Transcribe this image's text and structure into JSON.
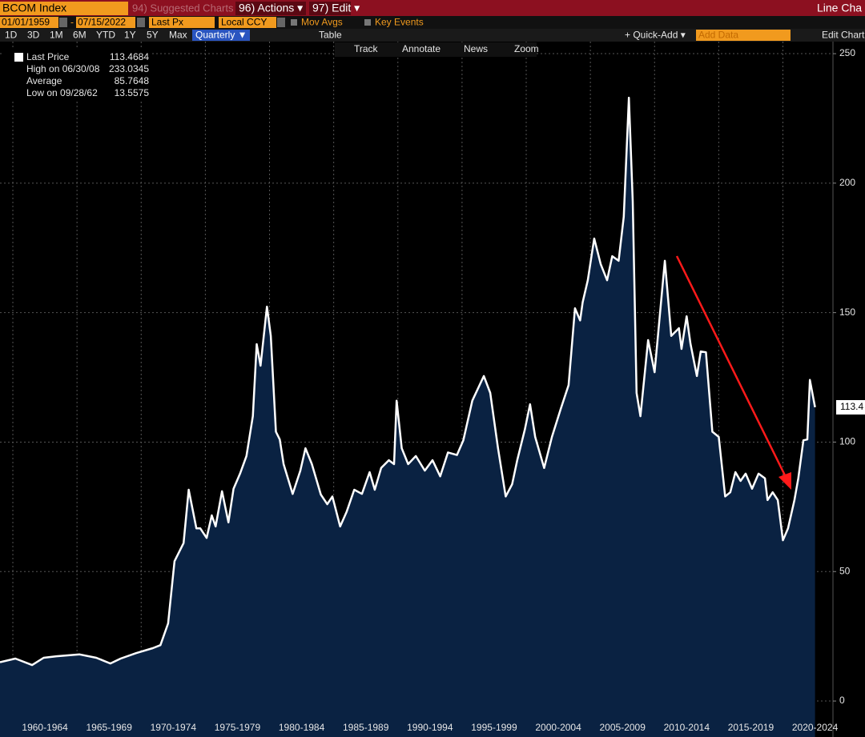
{
  "ui": {
    "topbar": {
      "security": "BCOM Index",
      "suggested": "94) Suggested Charts",
      "actions": "96) Actions ▾",
      "edit": "97) Edit ▾",
      "chart_type": "Line Cha"
    },
    "row2": {
      "start": "01/01/1959",
      "end": "07/15/2022",
      "field": "Last Px",
      "currency": "Local CCY",
      "mov_avgs": "Mov Avgs",
      "key_events": "Key Events"
    },
    "row3": {
      "periods": [
        "1D",
        "3D",
        "1M",
        "6M",
        "YTD",
        "1Y",
        "5Y",
        "Max"
      ],
      "frequency": "Quarterly ▼",
      "table": "Table",
      "quick_add": "+ Quick-Add ▾",
      "add_data": "Add Data",
      "edit_chart": "Edit Chart"
    },
    "tools": [
      "Track",
      "Annotate",
      "News",
      "Zoom"
    ],
    "legend": [
      {
        "label": "Last Price",
        "value": "113.4684"
      },
      {
        "label": "High on 06/30/08",
        "value": "233.0345"
      },
      {
        "label": "Average",
        "value": "85.7648"
      },
      {
        "label": "Low on 09/28/62",
        "value": "13.5575"
      }
    ],
    "last_tag": "113.4"
  },
  "chart_data": {
    "type": "area",
    "color": "#ffffff",
    "fill": "#0a2242",
    "x": [
      1959.0,
      1960.2,
      1961.5,
      1962.4,
      1963.4,
      1965.2,
      1966.5,
      1967.6,
      1968.4,
      1969.6,
      1970.9,
      1971.5,
      1972.1,
      1972.6,
      1973.3,
      1973.7,
      1974.3,
      1974.6,
      1975.1,
      1975.5,
      1975.8,
      1976.3,
      1976.8,
      1977.2,
      1977.7,
      1978.2,
      1978.7,
      1979.0,
      1979.3,
      1979.8,
      1980.1,
      1980.5,
      1980.8,
      1981.1,
      1981.8,
      1982.4,
      1982.8,
      1983.3,
      1984.0,
      1984.5,
      1984.9,
      1985.5,
      1986.0,
      1986.6,
      1987.2,
      1987.8,
      1988.2,
      1988.7,
      1989.3,
      1989.7,
      1989.9,
      1990.3,
      1990.8,
      1991.4,
      1992.1,
      1992.7,
      1993.3,
      1993.9,
      1994.6,
      1995.1,
      1995.8,
      1996.7,
      1997.2,
      1997.8,
      1998.4,
      1998.9,
      1999.3,
      1999.9,
      2000.3,
      2000.7,
      2001.4,
      2002.0,
      2002.7,
      2003.3,
      2003.8,
      2004.2,
      2004.4,
      2004.8,
      2005.3,
      2005.8,
      2006.3,
      2006.7,
      2007.2,
      2007.6,
      2008.0,
      2008.3,
      2008.6,
      2008.9,
      2009.5,
      2010.0,
      2010.8,
      2011.3,
      2011.9,
      2012.1,
      2012.5,
      2012.8,
      2013.3,
      2013.6,
      2014.0,
      2014.5,
      2015.0,
      2015.5,
      2015.9,
      2016.3,
      2016.7,
      2017.1,
      2017.6,
      2018.1,
      2018.6,
      2018.8,
      2019.2,
      2019.6,
      2020.0,
      2020.4,
      2020.9,
      2021.2,
      2021.6,
      2021.9,
      2022.1,
      2022.5
    ],
    "values": [
      15,
      16.4,
      13.9,
      16.7,
      17.3,
      18,
      16.7,
      14.5,
      16.4,
      18.5,
      20.4,
      21.6,
      30,
      54,
      61,
      81.6,
      66.7,
      66.7,
      63,
      71.7,
      67.4,
      81,
      69,
      82,
      87.8,
      94.6,
      110,
      137.8,
      129.5,
      152.3,
      141,
      104,
      101,
      91.5,
      80,
      89,
      97.6,
      91.5,
      79.7,
      76,
      79,
      67.4,
      73,
      81.6,
      80,
      88.4,
      81.6,
      90,
      93,
      91.5,
      116,
      97.6,
      91.5,
      94.6,
      89,
      93,
      86.8,
      96,
      95,
      100.7,
      116,
      125.5,
      119,
      97.6,
      79,
      83.7,
      93,
      105,
      114.6,
      102,
      90,
      102,
      113,
      122,
      151.7,
      147,
      154,
      162.5,
      178.6,
      168.7,
      162.5,
      171.8,
      170,
      187,
      233,
      193,
      119,
      110,
      139.4,
      127,
      170,
      141,
      144,
      136,
      148.6,
      138,
      125.5,
      135,
      134.7,
      104,
      102,
      79,
      80.6,
      88.4,
      85,
      87.8,
      82,
      87.8,
      86,
      77.6,
      80.6,
      77.6,
      62.1,
      66.7,
      77.6,
      86,
      100.7,
      101,
      124,
      113.47
    ],
    "xlim": [
      1959,
      2023.9
    ],
    "xticks": [
      {
        "value": 1960,
        "label": "1960-1964"
      },
      {
        "value": 1965,
        "label": "1965-1969"
      },
      {
        "value": 1970,
        "label": "1970-1974"
      },
      {
        "value": 1975,
        "label": "1975-1979"
      },
      {
        "value": 1980,
        "label": "1980-1984"
      },
      {
        "value": 1985,
        "label": "1985-1989"
      },
      {
        "value": 1990,
        "label": "1990-1994"
      },
      {
        "value": 1995,
        "label": "1995-1999"
      },
      {
        "value": 2000,
        "label": "2000-2004"
      },
      {
        "value": 2005,
        "label": "2005-2009"
      },
      {
        "value": 2010,
        "label": "2010-2014"
      },
      {
        "value": 2015,
        "label": "2015-2019"
      },
      {
        "value": 2020,
        "label": "2020-2024"
      }
    ],
    "ylim": [
      -7.4,
      252.8
    ],
    "yticks": [
      0,
      50,
      100,
      150,
      200,
      250
    ],
    "grid": true
  }
}
